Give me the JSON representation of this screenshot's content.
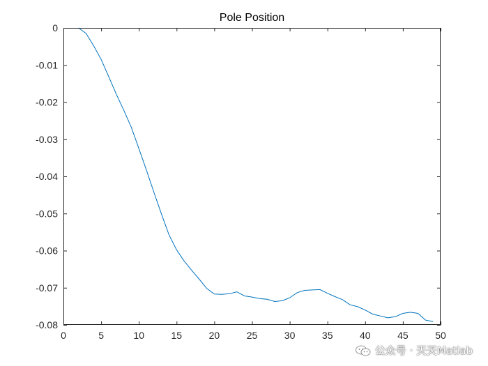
{
  "chart_data": {
    "type": "line",
    "title": "Pole Position",
    "xlabel": "",
    "ylabel": "",
    "xlim": [
      0,
      50
    ],
    "ylim": [
      -0.08,
      0
    ],
    "xticks": [
      0,
      5,
      10,
      15,
      20,
      25,
      30,
      35,
      40,
      45,
      50
    ],
    "yticks": [
      0,
      -0.01,
      -0.02,
      -0.03,
      -0.04,
      -0.05,
      -0.06,
      -0.07,
      -0.08
    ],
    "xtick_labels": [
      "0",
      "5",
      "10",
      "15",
      "20",
      "25",
      "30",
      "35",
      "40",
      "45",
      "50"
    ],
    "ytick_labels": [
      "0",
      "-0.01",
      "-0.02",
      "-0.03",
      "-0.04",
      "-0.05",
      "-0.06",
      "-0.07",
      "-0.08"
    ],
    "grid": false,
    "series": [
      {
        "color": "#0072bd",
        "x": [
          2,
          3,
          4,
          5,
          6,
          7,
          8,
          9,
          10,
          11,
          12,
          13,
          14,
          15,
          16,
          17,
          18,
          19,
          20,
          21,
          22,
          23,
          24,
          25,
          26,
          27,
          28,
          29,
          30,
          31,
          32,
          33,
          34,
          35,
          36,
          37,
          38,
          39,
          40,
          41,
          42,
          43,
          44,
          45,
          46,
          47,
          48,
          49
        ],
        "y": [
          0,
          -0.0015,
          -0.0048,
          -0.0085,
          -0.0131,
          -0.0178,
          -0.0222,
          -0.0268,
          -0.0325,
          -0.0383,
          -0.0443,
          -0.0502,
          -0.0558,
          -0.0598,
          -0.0628,
          -0.0653,
          -0.0677,
          -0.0702,
          -0.0717,
          -0.0718,
          -0.0716,
          -0.0711,
          -0.0722,
          -0.0725,
          -0.0729,
          -0.0731,
          -0.0737,
          -0.0735,
          -0.0727,
          -0.0713,
          -0.0707,
          -0.0706,
          -0.0705,
          -0.0715,
          -0.0724,
          -0.0732,
          -0.0746,
          -0.0751,
          -0.076,
          -0.0771,
          -0.0776,
          -0.0781,
          -0.0778,
          -0.0769,
          -0.0766,
          -0.0769,
          -0.0787,
          -0.0791
        ]
      }
    ]
  },
  "watermark": {
    "text": "公众号 · 天天Matlab",
    "icon": "wechat-icon"
  }
}
